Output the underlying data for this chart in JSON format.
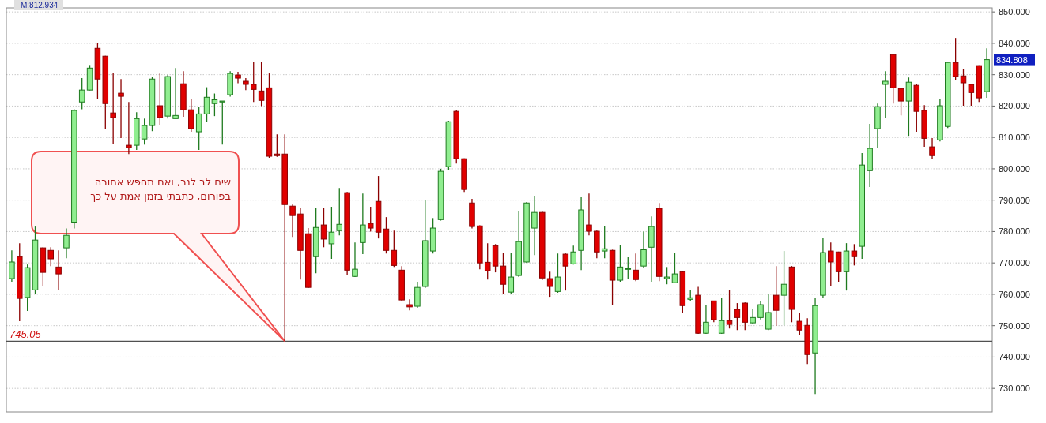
{
  "chart_data": {
    "type": "candlestick",
    "categories": [
      null,
      null,
      null,
      null,
      null,
      null,
      null,
      null,
      null,
      null,
      null,
      null,
      null,
      null,
      null,
      null,
      null,
      null,
      null,
      null,
      null,
      null,
      null,
      null,
      null,
      null,
      null,
      null,
      null,
      null,
      null,
      null,
      null,
      null,
      null,
      null,
      null,
      null,
      null,
      null,
      null,
      null,
      null,
      null,
      null,
      null,
      null,
      null,
      null,
      null,
      null,
      null,
      null,
      null,
      null,
      null,
      null,
      null,
      null,
      null,
      null,
      null,
      null,
      null,
      null,
      null,
      null,
      null,
      null,
      null,
      null,
      null,
      null,
      null,
      null,
      null,
      null,
      null,
      null,
      null,
      null,
      null,
      null,
      null,
      null,
      null,
      null,
      null,
      null,
      null,
      null,
      null,
      null,
      null,
      null,
      null,
      null,
      null,
      null,
      null,
      null,
      null,
      null,
      null,
      null,
      null,
      null,
      null,
      null,
      null,
      null,
      null,
      null,
      null,
      null,
      null,
      null,
      null,
      null,
      null,
      null,
      null,
      null,
      null,
      null,
      null
    ],
    "ohlc": [
      [
        765,
        774,
        764,
        770.3
      ],
      [
        772,
        776.3,
        751.4,
        758.7
      ],
      [
        759,
        769.5,
        754.7,
        768.5
      ],
      [
        761.4,
        781.6,
        760,
        777.3
      ],
      [
        774.8,
        775,
        762.5,
        767
      ],
      [
        774,
        775,
        769,
        771.3
      ],
      [
        768.7,
        774,
        761.4,
        766.5
      ],
      [
        774.8,
        781,
        771.5,
        778.8
      ],
      [
        783,
        819,
        781,
        818.6
      ],
      [
        821.3,
        828.9,
        819,
        825.1
      ],
      [
        825.1,
        833.1,
        825,
        832.1
      ],
      [
        838.4,
        840,
        822.3,
        828.6
      ],
      [
        835.9,
        836,
        812.8,
        820.8
      ],
      [
        817.8,
        830.4,
        808,
        816.3
      ],
      [
        824.1,
        828.6,
        809.8,
        823.1
      ],
      [
        807.5,
        821.3,
        804.7,
        806.7
      ],
      [
        807.5,
        818,
        806,
        816
      ],
      [
        809.5,
        816,
        807.7,
        813.8
      ],
      [
        813.8,
        829.4,
        812,
        828.6
      ],
      [
        820.1,
        830.4,
        814,
        816.3
      ],
      [
        816.8,
        830,
        816,
        829.4
      ],
      [
        816,
        832.1,
        816,
        817
      ],
      [
        827.1,
        831.1,
        816.6,
        818.8
      ],
      [
        818.8,
        822.3,
        811.8,
        812.8
      ],
      [
        811.8,
        819.6,
        806,
        817.5
      ],
      [
        817.5,
        826,
        815,
        822.8
      ],
      [
        820.8,
        824,
        816.8,
        822
      ],
      [
        821.3,
        821.6,
        807.7,
        821.6
      ],
      [
        823.6,
        831.1,
        823,
        830.4
      ],
      [
        829.9,
        830.9,
        827.3,
        828.9
      ],
      [
        827.9,
        828.9,
        825.1,
        826.9
      ],
      [
        826.9,
        834.1,
        821.3,
        825.3
      ],
      [
        824.8,
        834.1,
        820,
        821.8
      ],
      [
        825.8,
        830.4,
        803.5,
        804
      ],
      [
        804.7,
        811,
        803.8,
        804.2
      ],
      [
        804.7,
        811,
        745.05,
        788.6
      ],
      [
        788.1,
        788.6,
        778.3,
        785.1
      ],
      [
        785.6,
        787.4,
        764.7,
        774
      ],
      [
        779.3,
        781.1,
        762,
        762.2
      ],
      [
        772,
        787.6,
        766.7,
        781.3
      ],
      [
        782.1,
        787.6,
        775,
        777.6
      ],
      [
        776.1,
        787.9,
        771.3,
        779.8
      ],
      [
        780.3,
        793.9,
        778.8,
        782.3
      ],
      [
        792.4,
        792.6,
        766,
        767.7
      ],
      [
        765.7,
        776.5,
        765.5,
        768
      ],
      [
        776.5,
        792.1,
        772.8,
        782.1
      ],
      [
        782.6,
        787.9,
        780,
        781.1
      ],
      [
        789.6,
        797.7,
        777.8,
        779.8
      ],
      [
        780.8,
        784.6,
        773,
        774
      ],
      [
        774,
        780.3,
        768.7,
        769.2
      ],
      [
        767.7,
        769,
        758,
        758.2
      ],
      [
        756.7,
        758.4,
        754.9,
        756
      ],
      [
        756.2,
        764,
        755.7,
        762.2
      ],
      [
        762.5,
        790.1,
        762,
        777.1
      ],
      [
        773.8,
        784.3,
        773,
        781.1
      ],
      [
        783.8,
        800,
        783.5,
        799.2
      ],
      [
        800.7,
        815.3,
        799.7,
        815
      ],
      [
        818.3,
        818.6,
        801.7,
        803.2
      ],
      [
        803.2,
        803.3,
        792.6,
        793.4
      ],
      [
        789.1,
        790.4,
        781,
        781.6
      ],
      [
        781.8,
        782,
        768,
        770
      ],
      [
        770.2,
        776.3,
        764.7,
        767.5
      ],
      [
        775.5,
        776,
        767,
        769
      ],
      [
        769,
        773.3,
        760,
        763.2
      ],
      [
        760.7,
        773.3,
        760,
        765.5
      ],
      [
        766,
        786.6,
        765.5,
        776.8
      ],
      [
        770.3,
        789.4,
        770,
        789.1
      ],
      [
        781.1,
        791.4,
        772.5,
        786.1
      ],
      [
        786.1,
        786.6,
        764.5,
        765.2
      ],
      [
        765,
        767.2,
        759.2,
        762.5
      ],
      [
        760.9,
        773,
        760.5,
        765.5
      ],
      [
        772.8,
        773,
        761.2,
        769
      ],
      [
        769.7,
        775.5,
        769.5,
        773.5
      ],
      [
        774,
        791.1,
        767.7,
        786.9
      ],
      [
        782.1,
        792.1,
        778.8,
        780.1
      ],
      [
        780.1,
        780.3,
        771.5,
        773.5
      ],
      [
        773.8,
        781.6,
        771.5,
        774.5
      ],
      [
        774,
        774.2,
        756.7,
        764.5
      ],
      [
        764.5,
        775.8,
        764,
        768.7
      ],
      [
        768.2,
        771.8,
        765,
        768.2
      ],
      [
        767.7,
        773,
        764.2,
        764.7
      ],
      [
        769,
        780,
        768.5,
        774.2
      ],
      [
        775,
        784.8,
        764,
        781.6
      ],
      [
        787.4,
        789.1,
        764.2,
        765.7
      ],
      [
        765,
        768.7,
        763.2,
        765.5
      ],
      [
        763.7,
        773.3,
        763.5,
        766.5
      ],
      [
        767.2,
        767.5,
        754.2,
        756.4
      ],
      [
        758.4,
        761.4,
        757.7,
        758.9
      ],
      [
        759.7,
        762.4,
        747.4,
        747.6
      ],
      [
        747.6,
        756.7,
        747.4,
        751.1
      ],
      [
        757.9,
        758,
        751.1,
        751.9
      ],
      [
        747.6,
        758.9,
        747.4,
        751.6
      ],
      [
        751.6,
        761.4,
        749.1,
        750.4
      ],
      [
        755.2,
        757.2,
        748.6,
        752.6
      ],
      [
        757.2,
        757.4,
        748.6,
        751.1
      ],
      [
        750.9,
        755.2,
        750.4,
        752.6
      ],
      [
        752.6,
        757.9,
        752,
        756.7
      ],
      [
        748.9,
        760.2,
        748.6,
        754.2
      ],
      [
        759.7,
        769,
        749.9,
        754.9
      ],
      [
        759.7,
        773.8,
        750.1,
        763.2
      ],
      [
        768.7,
        769,
        751.1,
        755.2
      ],
      [
        751.4,
        754.2,
        746.9,
        748.6
      ],
      [
        750.1,
        752.4,
        737.8,
        740.8
      ],
      [
        741.3,
        758.7,
        728.2,
        756.4
      ],
      [
        759.7,
        778,
        759,
        773.3
      ],
      [
        773.8,
        776.5,
        762.5,
        770.3
      ],
      [
        773.5,
        773.6,
        764,
        767.2
      ],
      [
        767.2,
        776.3,
        761.2,
        773.8
      ],
      [
        773.8,
        776,
        769.2,
        772
      ],
      [
        775.3,
        805,
        771.3,
        801.2
      ],
      [
        799.4,
        814.3,
        794.2,
        806.5
      ],
      [
        812.8,
        820.8,
        806.5,
        819.8
      ],
      [
        826.9,
        831.1,
        816.3,
        827.9
      ],
      [
        836.4,
        836.6,
        820.8,
        825.8
      ],
      [
        825.6,
        825.8,
        817,
        821.6
      ],
      [
        821.6,
        829.1,
        810.5,
        827.6
      ],
      [
        826.6,
        826.9,
        811.8,
        818.3
      ],
      [
        818.6,
        820.3,
        807,
        809.7
      ],
      [
        807,
        809.8,
        803.2,
        804.2
      ],
      [
        809.2,
        822.3,
        808.7,
        820.1
      ],
      [
        813.5,
        834.1,
        813,
        833.9
      ],
      [
        833.9,
        841.7,
        828.4,
        829.4
      ],
      [
        829.6,
        831.9,
        820.1,
        827.4
      ],
      [
        826.9,
        827,
        820.1,
        824.3
      ],
      [
        832.9,
        833,
        821.3,
        822.6
      ],
      [
        824.6,
        838.4,
        822.6,
        834.8
      ]
    ],
    "ylim": [
      722.5,
      851.3
    ],
    "yticks": [
      {
        "value": 730,
        "label": "730.000"
      },
      {
        "value": 740,
        "label": "740.000"
      },
      {
        "value": 750,
        "label": "750.000"
      },
      {
        "value": 760,
        "label": "760.000"
      },
      {
        "value": 770,
        "label": "770.000"
      },
      {
        "value": 780,
        "label": "780.000"
      },
      {
        "value": 790,
        "label": "790.000"
      },
      {
        "value": 800,
        "label": "800.000"
      },
      {
        "value": 810,
        "label": "810.000"
      },
      {
        "value": 820,
        "label": "820.000"
      },
      {
        "value": 830,
        "label": "830.000"
      },
      {
        "value": 840,
        "label": "840.000"
      },
      {
        "value": 850,
        "label": "850.000"
      }
    ],
    "grid": "y",
    "ref_lines": [
      {
        "axis": "y",
        "value": 745.05,
        "label": "745.05",
        "color": "#505050"
      }
    ],
    "annotations": [
      "M:812.934",
      "834.808",
      "שים לב לנר, ואם תחפש אחורה בפורום, כתבתי בזמן אמת על כך"
    ]
  }
}
